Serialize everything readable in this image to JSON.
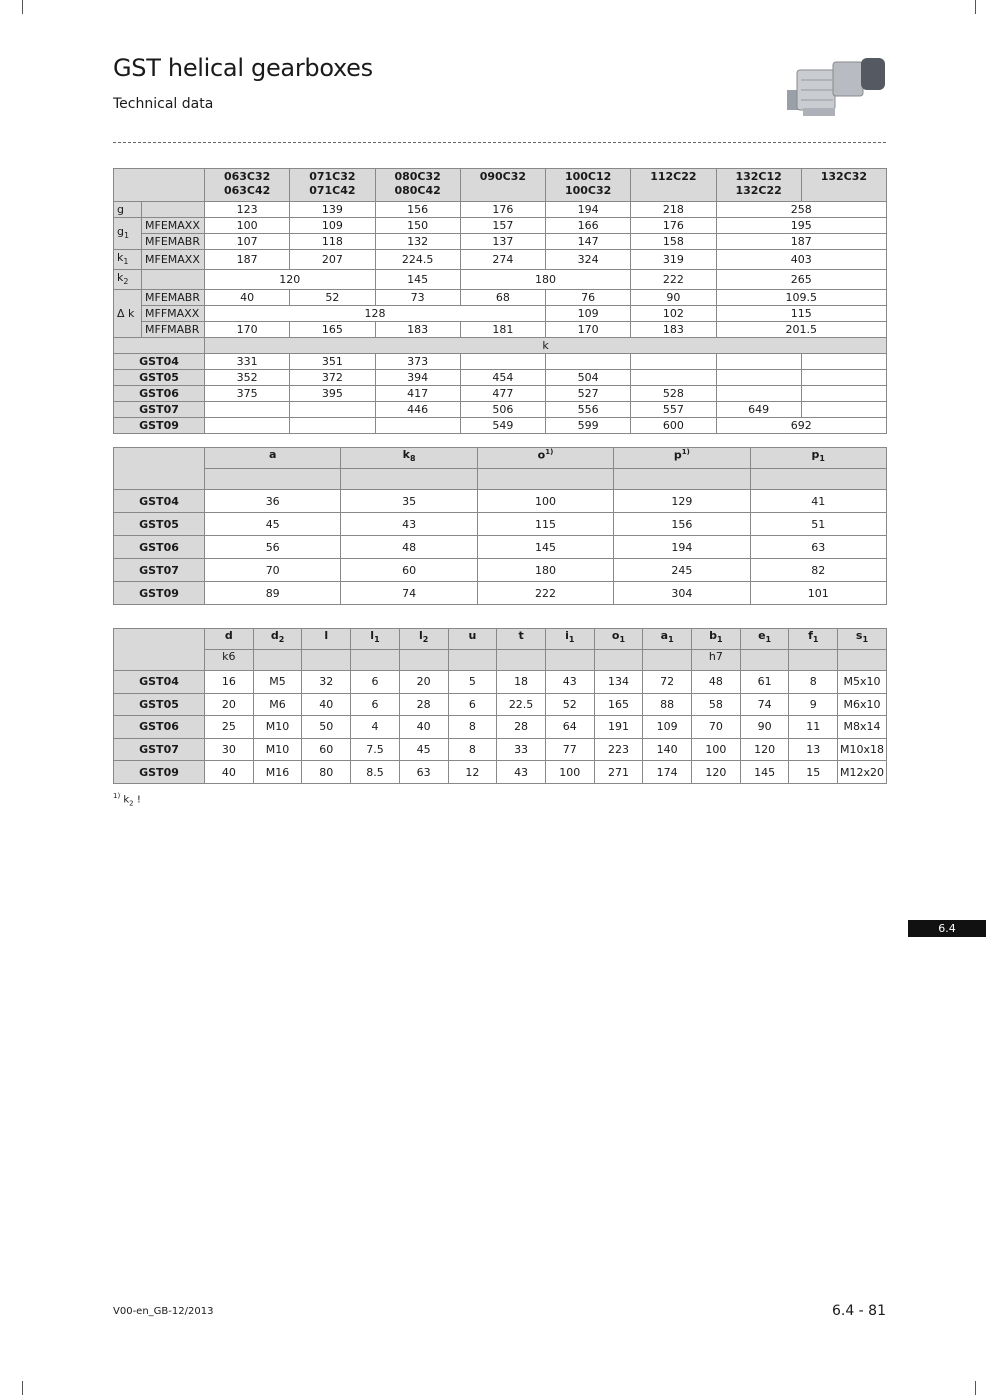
{
  "header": {
    "title": "GST helical gearboxes",
    "subtitle": "Technical data"
  },
  "table1": {
    "columns": [
      [
        "063C32",
        "063C42"
      ],
      [
        "071C32",
        "071C42"
      ],
      [
        "080C32",
        "080C42"
      ],
      [
        "090C32"
      ],
      [
        "100C12",
        "100C32"
      ],
      [
        "112C22"
      ],
      [
        "132C12",
        "132C22"
      ],
      [
        "132C32"
      ]
    ],
    "rows": [
      {
        "param": "g",
        "variant": "",
        "cells": [
          {
            "v": "123"
          },
          {
            "v": "139"
          },
          {
            "v": "156"
          },
          {
            "v": "176"
          },
          {
            "v": "194"
          },
          {
            "v": "218"
          },
          {
            "v": "258",
            "span": 2
          }
        ]
      },
      {
        "param": "g1",
        "variant": "MFEMAXX",
        "cells": [
          {
            "v": "100"
          },
          {
            "v": "109"
          },
          {
            "v": "150"
          },
          {
            "v": "157"
          },
          {
            "v": "166"
          },
          {
            "v": "176"
          },
          {
            "v": "195",
            "span": 2
          }
        ]
      },
      {
        "param": "",
        "variant": "MFEMABR",
        "cells": [
          {
            "v": "107"
          },
          {
            "v": "118"
          },
          {
            "v": "132"
          },
          {
            "v": "137"
          },
          {
            "v": "147"
          },
          {
            "v": "158"
          },
          {
            "v": "187",
            "span": 2
          }
        ]
      },
      {
        "param": "k1",
        "variant": "MFEMAXX",
        "cells": [
          {
            "v": "187"
          },
          {
            "v": "207"
          },
          {
            "v": "224.5"
          },
          {
            "v": "274"
          },
          {
            "v": "324"
          },
          {
            "v": "319"
          },
          {
            "v": "403",
            "span": 2
          }
        ]
      },
      {
        "param": "k2",
        "variant": "",
        "cells": [
          {
            "v": "120",
            "span": 2
          },
          {
            "v": "145"
          },
          {
            "v": "180",
            "span": 2
          },
          {
            "v": "222"
          },
          {
            "v": "265",
            "span": 2
          }
        ]
      },
      {
        "param": "Δ k",
        "variant": "MFEMABR",
        "cells": [
          {
            "v": "40"
          },
          {
            "v": "52"
          },
          {
            "v": "73"
          },
          {
            "v": "68"
          },
          {
            "v": "76"
          },
          {
            "v": "90"
          },
          {
            "v": "109.5",
            "span": 2
          }
        ]
      },
      {
        "param": "",
        "variant": "MFFMAXX",
        "cells": [
          {
            "v": "128",
            "span": 4
          },
          {
            "v": "109"
          },
          {
            "v": "102"
          },
          {
            "v": "115",
            "span": 2
          }
        ]
      },
      {
        "param": "",
        "variant": "MFFMABR",
        "cells": [
          {
            "v": "170"
          },
          {
            "v": "165"
          },
          {
            "v": "183"
          },
          {
            "v": "181"
          },
          {
            "v": "170"
          },
          {
            "v": "183"
          },
          {
            "v": "201.5",
            "span": 2
          }
        ]
      }
    ],
    "k_label": "k",
    "k_rows": [
      {
        "type": "GST04",
        "cells": [
          {
            "v": "331"
          },
          {
            "v": "351"
          },
          {
            "v": "373"
          },
          {
            "v": ""
          },
          {
            "v": ""
          },
          {
            "v": ""
          },
          {
            "v": ""
          },
          {
            "v": ""
          }
        ]
      },
      {
        "type": "GST05",
        "cells": [
          {
            "v": "352"
          },
          {
            "v": "372"
          },
          {
            "v": "394"
          },
          {
            "v": "454"
          },
          {
            "v": "504"
          },
          {
            "v": ""
          },
          {
            "v": ""
          },
          {
            "v": ""
          }
        ]
      },
      {
        "type": "GST06",
        "cells": [
          {
            "v": "375"
          },
          {
            "v": "395"
          },
          {
            "v": "417"
          },
          {
            "v": "477"
          },
          {
            "v": "527"
          },
          {
            "v": "528"
          },
          {
            "v": ""
          },
          {
            "v": ""
          }
        ]
      },
      {
        "type": "GST07",
        "cells": [
          {
            "v": ""
          },
          {
            "v": ""
          },
          {
            "v": "446"
          },
          {
            "v": "506"
          },
          {
            "v": "556"
          },
          {
            "v": "557"
          },
          {
            "v": "649"
          },
          {
            "v": ""
          }
        ]
      },
      {
        "type": "GST09",
        "cells": [
          {
            "v": ""
          },
          {
            "v": ""
          },
          {
            "v": ""
          },
          {
            "v": "549"
          },
          {
            "v": "599"
          },
          {
            "v": "600"
          },
          {
            "v": "692",
            "span": 2
          }
        ]
      }
    ]
  },
  "table2": {
    "headers": [
      {
        "b": "a"
      },
      {
        "b": "k",
        "sub": "8"
      },
      {
        "b": "o",
        "sup": "1)"
      },
      {
        "b": "p",
        "sup": "1)"
      },
      {
        "b": "p",
        "sub": "1"
      }
    ],
    "rows": [
      {
        "type": "GST04",
        "values": [
          "36",
          "35",
          "100",
          "129",
          "41"
        ]
      },
      {
        "type": "GST05",
        "values": [
          "45",
          "43",
          "115",
          "156",
          "51"
        ]
      },
      {
        "type": "GST06",
        "values": [
          "56",
          "48",
          "145",
          "194",
          "63"
        ]
      },
      {
        "type": "GST07",
        "values": [
          "70",
          "60",
          "180",
          "245",
          "82"
        ]
      },
      {
        "type": "GST09",
        "values": [
          "89",
          "74",
          "222",
          "304",
          "101"
        ]
      }
    ]
  },
  "table3": {
    "headers": [
      {
        "b": "d",
        "tol": "k6"
      },
      {
        "b": "d",
        "sub": "2"
      },
      {
        "b": "l"
      },
      {
        "b": "l",
        "sub": "1"
      },
      {
        "b": "l",
        "sub": "2"
      },
      {
        "b": "u"
      },
      {
        "b": "t"
      },
      {
        "b": "i",
        "sub": "1"
      },
      {
        "b": "o",
        "sub": "1"
      },
      {
        "b": "a",
        "sub": "1"
      },
      {
        "b": "b",
        "sub": "1",
        "tol": "h7"
      },
      {
        "b": "e",
        "sub": "1"
      },
      {
        "b": "f",
        "sub": "1"
      },
      {
        "b": "s",
        "sub": "1"
      }
    ],
    "rows": [
      {
        "type": "GST04",
        "values": [
          "16",
          "M5",
          "32",
          "6",
          "20",
          "5",
          "18",
          "43",
          "134",
          "72",
          "48",
          "61",
          "8",
          "M5x10"
        ]
      },
      {
        "type": "GST05",
        "values": [
          "20",
          "M6",
          "40",
          "6",
          "28",
          "6",
          "22.5",
          "52",
          "165",
          "88",
          "58",
          "74",
          "9",
          "M6x10"
        ]
      },
      {
        "type": "GST06",
        "values": [
          "25",
          "M10",
          "50",
          "4",
          "40",
          "8",
          "28",
          "64",
          "191",
          "109",
          "70",
          "90",
          "11",
          "M8x14"
        ]
      },
      {
        "type": "GST07",
        "values": [
          "30",
          "M10",
          "60",
          "7.5",
          "45",
          "8",
          "33",
          "77",
          "223",
          "140",
          "100",
          "120",
          "13",
          "M10x18"
        ]
      },
      {
        "type": "GST09",
        "values": [
          "40",
          "M16",
          "80",
          "8.5",
          "63",
          "12",
          "43",
          "100",
          "271",
          "174",
          "120",
          "145",
          "15",
          "M12x20"
        ]
      }
    ]
  },
  "footnote": {
    "mark": "1)",
    "text": "k",
    "sub": "2",
    "suffix": " !"
  },
  "section_tab": "6.4",
  "footer": {
    "doc_id": "V00-en_GB-12/2013",
    "page": "6.4 - 81"
  }
}
